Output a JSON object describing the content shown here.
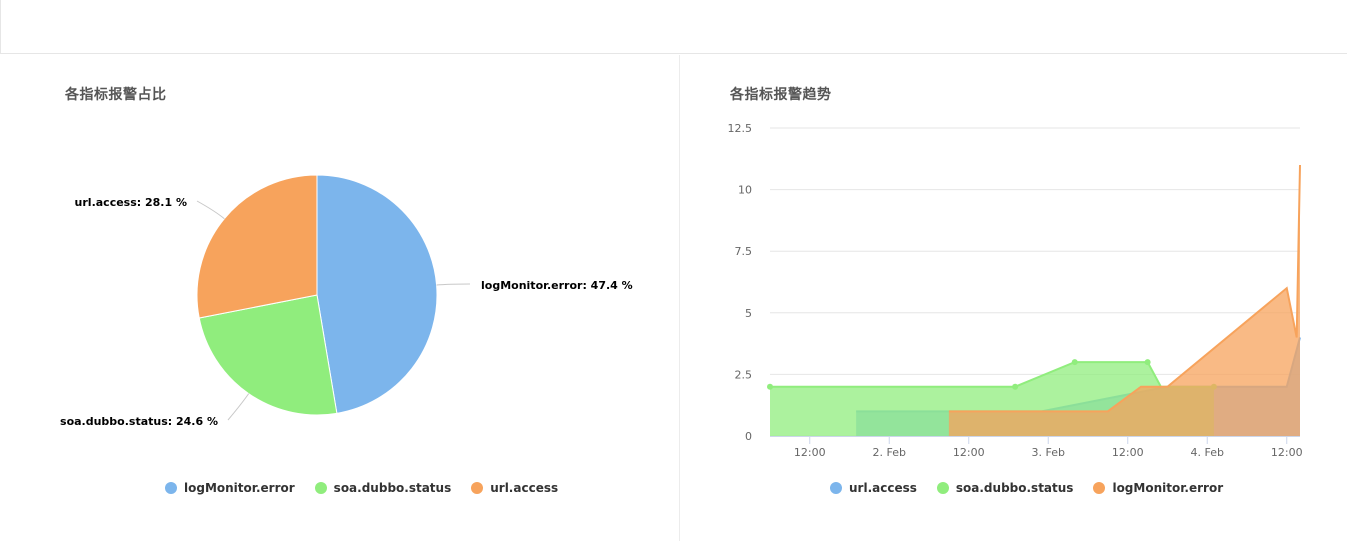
{
  "colors": {
    "blue": "#7cb5ec",
    "green": "#90ed7d",
    "orange": "#f7a35c",
    "grid": "#e6e6e6",
    "axis_text": "#666666"
  },
  "chart_data": [
    {
      "type": "pie",
      "title": "各指标报警占比",
      "slices": [
        {
          "name": "logMonitor.error",
          "value": 47.4,
          "label": "logMonitor.error: 47.4 %",
          "color": "#7cb5ec"
        },
        {
          "name": "soa.dubbo.status",
          "value": 24.6,
          "label": "soa.dubbo.status: 24.6 %",
          "color": "#90ed7d"
        },
        {
          "name": "url.access",
          "value": 28.1,
          "label": "url.access: 28.1 %",
          "color": "#f7a35c"
        }
      ],
      "legend": [
        "logMonitor.error",
        "soa.dubbo.status",
        "url.access"
      ],
      "legend_position": "bottom-center"
    },
    {
      "type": "area",
      "title": "各指标报警趋势",
      "x_range": [
        "2015-02-01T06:00",
        "2015-02-04T14:00"
      ],
      "x_ticks": [
        "12:00",
        "2. Feb",
        "12:00",
        "3. Feb",
        "12:00",
        "4. Feb",
        "12:00"
      ],
      "y_ticks": [
        "0",
        "2.5",
        "5",
        "7.5",
        "10",
        "12.5"
      ],
      "ylim": [
        0,
        12.5
      ],
      "grid": true,
      "legend_position": "bottom-center",
      "series": [
        {
          "name": "url.access",
          "color": "#7cb5ec",
          "points": [
            [
              "2015-02-01T19:00",
              0
            ],
            [
              "2015-02-01T19:00",
              1
            ],
            [
              "2015-02-02T23:00",
              1
            ],
            [
              "2015-02-03T18:00",
              2
            ],
            [
              "2015-02-04T03:00",
              2
            ],
            [
              "2015-02-04T12:00",
              2
            ],
            [
              "2015-02-04T14:00",
              4
            ],
            [
              "2015-02-04T14:00",
              0
            ]
          ],
          "markers": false
        },
        {
          "name": "soa.dubbo.status",
          "color": "#90ed7d",
          "points": [
            [
              "2015-02-01T06:00",
              0
            ],
            [
              "2015-02-01T06:00",
              2
            ],
            [
              "2015-02-02T19:00",
              2
            ],
            [
              "2015-02-03T04:00",
              3
            ],
            [
              "2015-02-03T15:00",
              3
            ],
            [
              "2015-02-03T17:00",
              2
            ],
            [
              "2015-02-04T01:00",
              2
            ],
            [
              "2015-02-04T01:00",
              0
            ]
          ],
          "marker_points": [
            [
              "2015-02-01T06:00",
              2
            ],
            [
              "2015-02-02T19:00",
              2
            ],
            [
              "2015-02-03T04:00",
              3
            ],
            [
              "2015-02-03T15:00",
              3
            ],
            [
              "2015-02-04T01:00",
              2
            ]
          ],
          "markers": true
        },
        {
          "name": "logMonitor.error",
          "color": "#f7a35c",
          "points": [
            [
              "2015-02-02T09:00",
              0
            ],
            [
              "2015-02-02T09:00",
              1
            ],
            [
              "2015-02-03T09:00",
              1
            ],
            [
              "2015-02-03T14:00",
              2
            ],
            [
              "2015-02-03T18:00",
              2
            ],
            [
              "2015-02-04T12:00",
              6
            ],
            [
              "2015-02-04T13:30",
              4
            ],
            [
              "2015-02-04T14:00",
              11
            ],
            [
              "2015-02-04T14:00",
              0
            ]
          ],
          "markers": false
        }
      ],
      "legend": [
        "url.access",
        "soa.dubbo.status",
        "logMonitor.error"
      ]
    }
  ]
}
